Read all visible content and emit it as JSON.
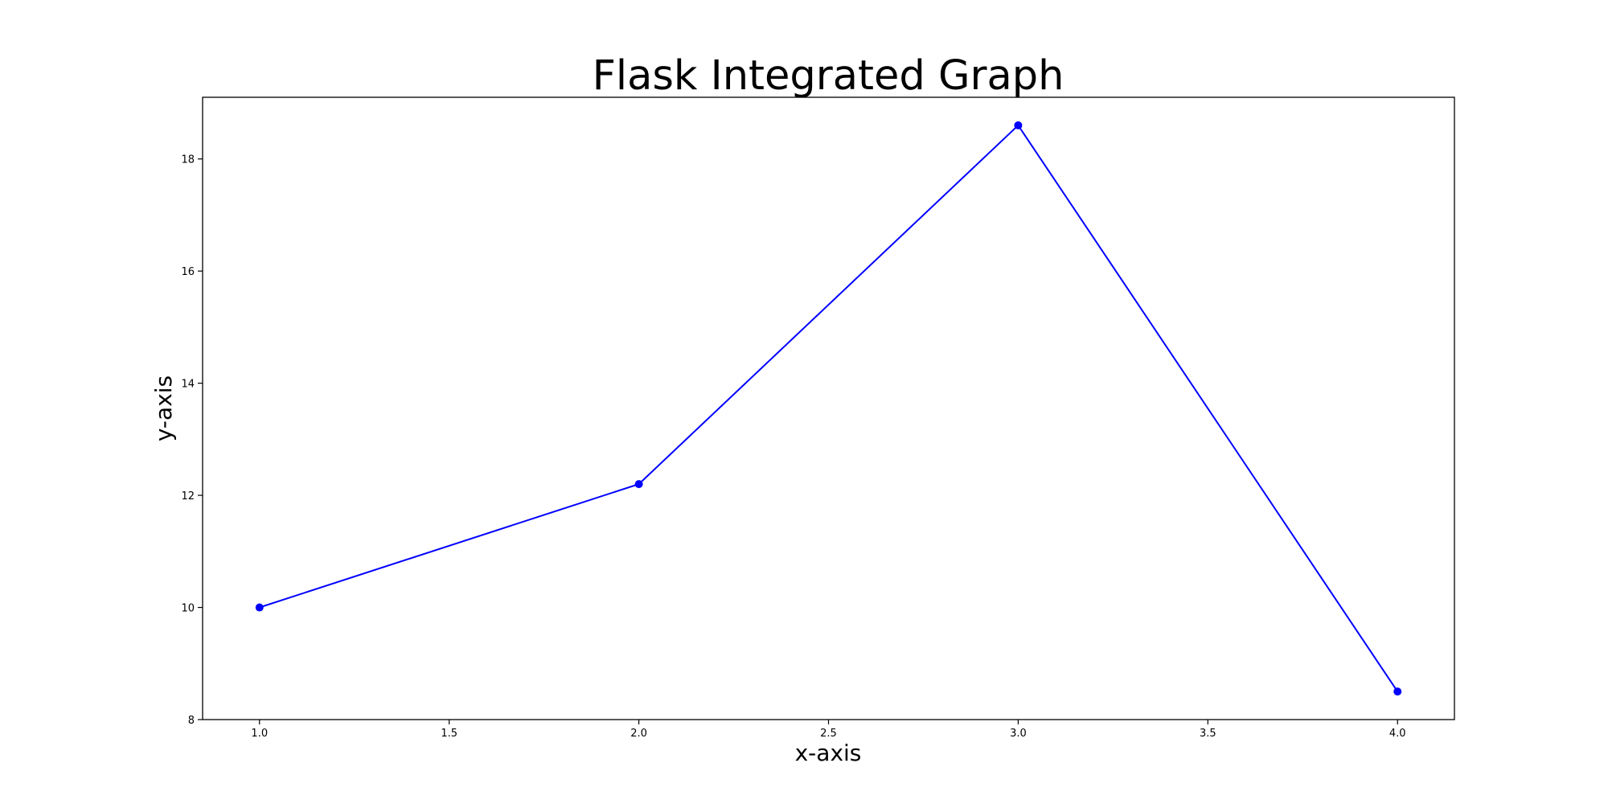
{
  "chart_data": {
    "type": "line",
    "title": "Flask Integrated Graph",
    "xlabel": "x-axis",
    "ylabel": "y-axis",
    "x": [
      1.0,
      2.0,
      3.0,
      4.0
    ],
    "series": [
      {
        "values": [
          10.0,
          12.2,
          18.6,
          8.5
        ],
        "color": "#0000ff",
        "marker": "circle"
      }
    ],
    "xlim": [
      0.85,
      4.15
    ],
    "ylim": [
      8.0,
      19.1
    ],
    "xticks": [
      1.0,
      1.5,
      2.0,
      2.5,
      3.0,
      3.5,
      4.0
    ],
    "xtick_labels": [
      "1.0",
      "1.5",
      "2.0",
      "2.5",
      "3.0",
      "3.5",
      "4.0"
    ],
    "yticks": [
      8,
      10,
      12,
      14,
      16,
      18
    ],
    "ytick_labels": [
      "8",
      "10",
      "12",
      "14",
      "16",
      "18"
    ],
    "grid": false,
    "legend": "none"
  }
}
